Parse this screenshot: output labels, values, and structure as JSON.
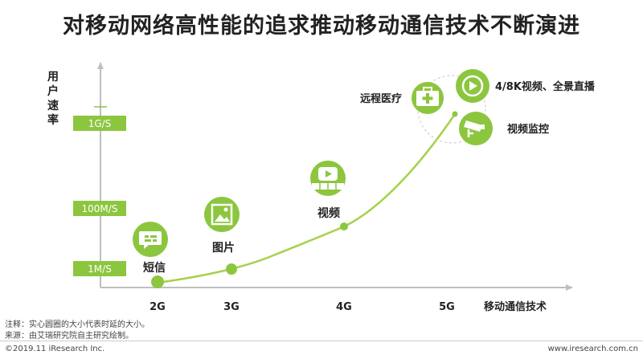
{
  "title": "对移动网络高性能的追求推动移动通信技术不断演进",
  "y_axis_label": [
    "用",
    "户",
    "速",
    "率"
  ],
  "x_axis_label": "移动通信技术",
  "speed_levels": [
    "1G/S",
    "100M/S",
    "1M/S"
  ],
  "generations": [
    "2G",
    "3G",
    "4G",
    "5G"
  ],
  "applications": {
    "sms": "短信",
    "picture": "图片",
    "video": "视频",
    "telemedicine": "远程医疗",
    "uhd_live": "4/8K视频、全景直播",
    "surveillance": "视频监控"
  },
  "notes": {
    "note1": "注释：实心圆圈的大小代表时延的大小。",
    "note2": "来源：由艾瑞研究院自主研究绘制。"
  },
  "footer": {
    "copyright": "©2019.11 iResearch Inc.",
    "website": "www.iresearch.com.cn"
  },
  "colors": {
    "accent": "#8cc63f",
    "curve": "#a6d14a",
    "axis": "#bfbfbf"
  }
}
